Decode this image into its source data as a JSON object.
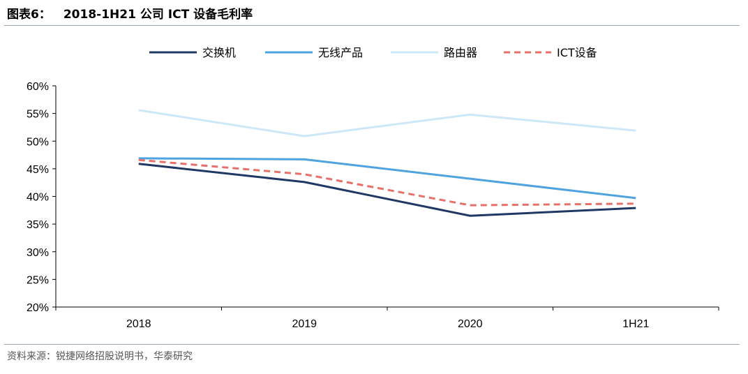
{
  "header": {
    "figure_label": "图表6：",
    "title": "2018-1H21 公司 ICT 设备毛利率"
  },
  "footer": {
    "source": "资料来源：锐捷网络招股说明书，华泰研究"
  },
  "chart_data": {
    "type": "line",
    "title": "2018-1H21 公司 ICT 设备毛利率",
    "categories": [
      "2018",
      "2019",
      "2020",
      "1H21"
    ],
    "ylim": [
      0.2,
      0.6
    ],
    "yticks": [
      0.2,
      0.25,
      0.3,
      0.35,
      0.4,
      0.45,
      0.5,
      0.55,
      0.6
    ],
    "ytick_labels": [
      "20%",
      "25%",
      "30%",
      "35%",
      "40%",
      "45%",
      "50%",
      "55%",
      "60%"
    ],
    "grid": false,
    "legend_position": "top",
    "series": [
      {
        "name": "交换机",
        "values": [
          0.459,
          0.426,
          0.365,
          0.379
        ],
        "color": "#1f3864",
        "dash": "solid"
      },
      {
        "name": "无线产品",
        "values": [
          0.469,
          0.467,
          0.432,
          0.397
        ],
        "color": "#4ea3e0",
        "dash": "solid"
      },
      {
        "name": "路由器",
        "values": [
          0.556,
          0.509,
          0.548,
          0.519
        ],
        "color": "#cde8f7",
        "dash": "solid"
      },
      {
        "name": "ICT设备",
        "values": [
          0.466,
          0.44,
          0.384,
          0.387
        ],
        "color": "#e8706a",
        "dash": "dashed"
      }
    ]
  }
}
